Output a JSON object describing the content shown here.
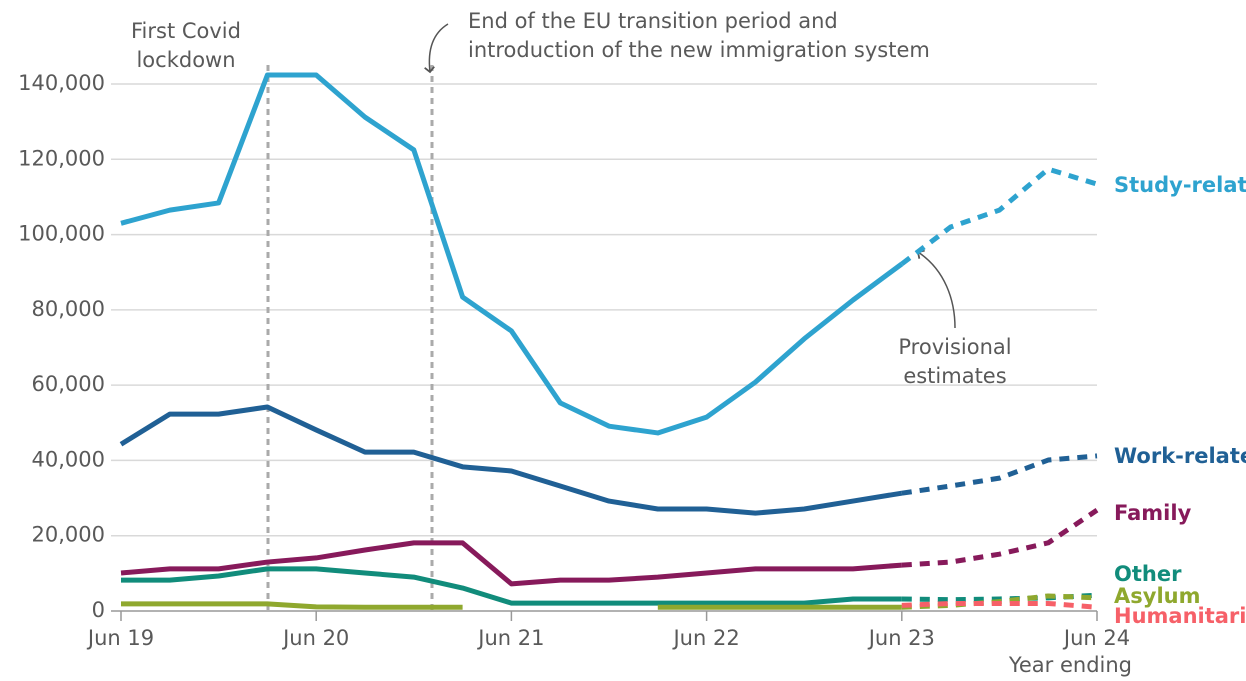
{
  "chart_data": {
    "type": "line",
    "categories": [
      "Jun 19",
      null,
      null,
      null,
      "Jun 20",
      null,
      null,
      null,
      "Jun 21",
      null,
      null,
      null,
      "Jun 22",
      null,
      null,
      null,
      "Jun 23",
      null,
      null,
      null,
      "Jun 24"
    ],
    "provisional_from": "Jun 23",
    "x_label": "Year ending",
    "ylim": [
      0,
      140000
    ],
    "yticks": [
      0,
      {
        "value": 20000,
        "label": "20,000"
      },
      {
        "value": 40000,
        "label": "40,000"
      },
      {
        "value": 60000,
        "label": "60,000"
      },
      {
        "value": 80000,
        "label": "80,000"
      },
      {
        "value": 100000,
        "label": "100,000"
      },
      {
        "value": 120000,
        "label": "120,000"
      },
      {
        "value": 140000,
        "label": "140,000"
      }
    ],
    "grid": true,
    "annotations": [
      "First Covid\nlockdown",
      "End of the EU transition period and\nintroduction of the new immigration system",
      "Provisional\nestimates"
    ],
    "series": [
      {
        "name": "Study-related",
        "color": "#2ea3cf",
        "values": [
          103000,
          106500,
          108400,
          142400,
          142400,
          131200,
          122500,
          83400,
          74400,
          55300,
          49100,
          47300,
          51500,
          60800,
          72300,
          82600,
          92200,
          102000,
          106500,
          117400,
          113400
        ]
      },
      {
        "name": "Work-related",
        "color": "#206095",
        "values": [
          44300,
          52300,
          52300,
          54200,
          48100,
          42200,
          42200,
          38300,
          37200,
          33200,
          29200,
          27100,
          27100,
          26000,
          27100,
          29200,
          31300,
          33200,
          35300,
          40100,
          41200
        ]
      },
      {
        "name": "Family",
        "color": "#871a5b",
        "values": [
          10100,
          11200,
          11200,
          13000,
          14100,
          16200,
          18100,
          18100,
          7200,
          8200,
          8200,
          9000,
          10100,
          11200,
          11200,
          11200,
          12200,
          13000,
          15100,
          18100,
          26800
        ]
      },
      {
        "name": "Other",
        "color": "#118c7b",
        "values": [
          8200,
          8200,
          9300,
          11200,
          11200,
          10100,
          9000,
          6100,
          2100,
          2100,
          2100,
          2100,
          2100,
          2100,
          2100,
          3200,
          3200,
          3000,
          3200,
          3500,
          4200
        ]
      },
      {
        "name": "Asylum",
        "color": "#8fa82e",
        "values": [
          1900,
          1900,
          1900,
          1900,
          1100,
          1000,
          1000,
          1000,
          null,
          null,
          null,
          1000,
          1000,
          1000,
          1000,
          1000,
          1000,
          1500,
          2500,
          4000,
          3500
        ]
      },
      {
        "name": "Humanitarian",
        "color": "#f66068",
        "values": [
          null,
          null,
          null,
          null,
          null,
          null,
          null,
          null,
          null,
          null,
          null,
          null,
          null,
          null,
          null,
          null,
          1500,
          2000,
          2000,
          2000,
          1000
        ]
      }
    ]
  }
}
